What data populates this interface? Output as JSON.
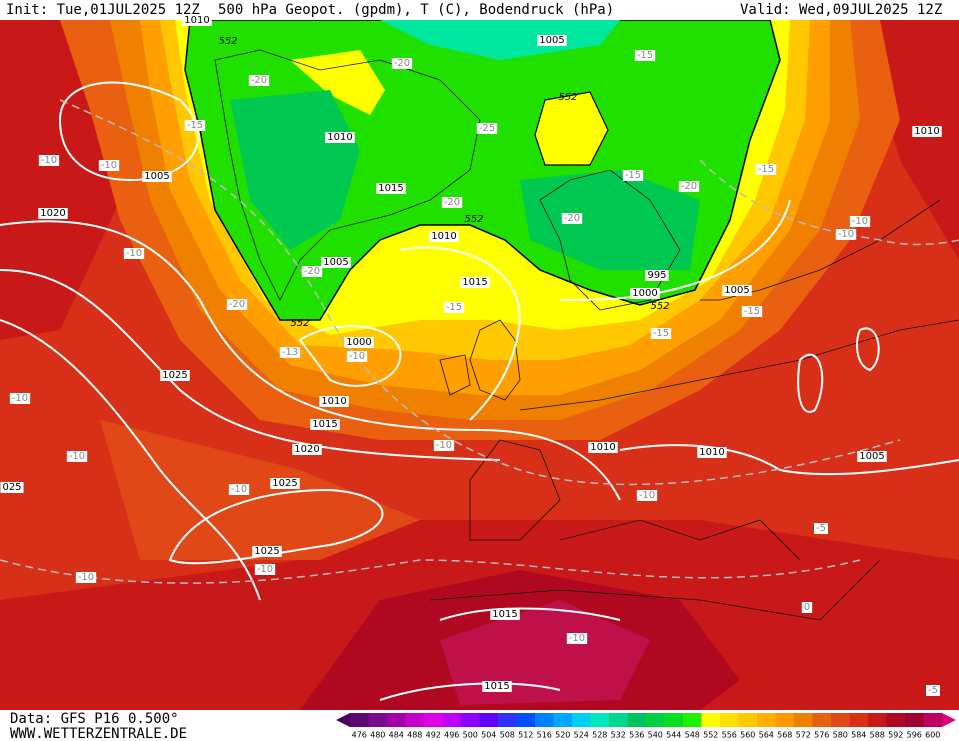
{
  "header": {
    "init": "Init: Tue,01JUL2025 12Z",
    "title": "500 hPa Geopot. (gpdm), T (C), Bodendruck (hPa)",
    "valid": "Valid: Wed,09JUL2025 12Z"
  },
  "footer": {
    "data": "Data: GFS P16 0.500°",
    "site": "WWW.WETTERZENTRALE.DE"
  },
  "colorbar": {
    "levels": [
      476,
      480,
      484,
      488,
      492,
      496,
      500,
      504,
      508,
      512,
      516,
      520,
      524,
      528,
      532,
      536,
      540,
      544,
      548,
      552,
      556,
      560,
      564,
      568,
      572,
      576,
      580,
      584,
      588,
      592,
      596,
      600
    ],
    "colors": [
      "#5a0a6e",
      "#7a0a8e",
      "#a000a8",
      "#c800c8",
      "#e000e8",
      "#c000ff",
      "#9000ff",
      "#6000ff",
      "#3030ff",
      "#0050ff",
      "#0080ff",
      "#00a8ff",
      "#00d0f0",
      "#00e8c0",
      "#00d890",
      "#00c060",
      "#00d040",
      "#00e020",
      "#20f000",
      "#ffff00",
      "#ffe000",
      "#ffc800",
      "#ffb000",
      "#ff9800",
      "#f08000",
      "#e86010",
      "#e04818",
      "#d83018",
      "#c81818",
      "#b00820",
      "#a00030",
      "#c00060"
    ]
  },
  "map": {
    "pressure_labels": [
      "1010",
      "1005",
      "1010",
      "1015",
      "1005",
      "1020",
      "1010",
      "1005",
      "1015",
      "1000",
      "1010",
      "1015",
      "1020",
      "1025",
      "1025",
      "1025",
      "1015",
      "1015",
      "1010",
      "1010",
      "1005",
      "995",
      "1000",
      "1005",
      "1010",
      "025"
    ],
    "temperature_labels": [
      "-20",
      "-20",
      "-15",
      "-15",
      "-25",
      "-10",
      "-10",
      "-15",
      "-20",
      "-15",
      "-20",
      "-20",
      "-10",
      "-20",
      "-20",
      "-15",
      "-13",
      "-10",
      "-15",
      "-15",
      "-10",
      "-10",
      "-10",
      "-10",
      "-10",
      "-10",
      "-10",
      "-10",
      "-10",
      "-10",
      "-5",
      "0",
      "-5"
    ],
    "height_labels": [
      "552",
      "552",
      "552",
      "552",
      "552"
    ]
  }
}
